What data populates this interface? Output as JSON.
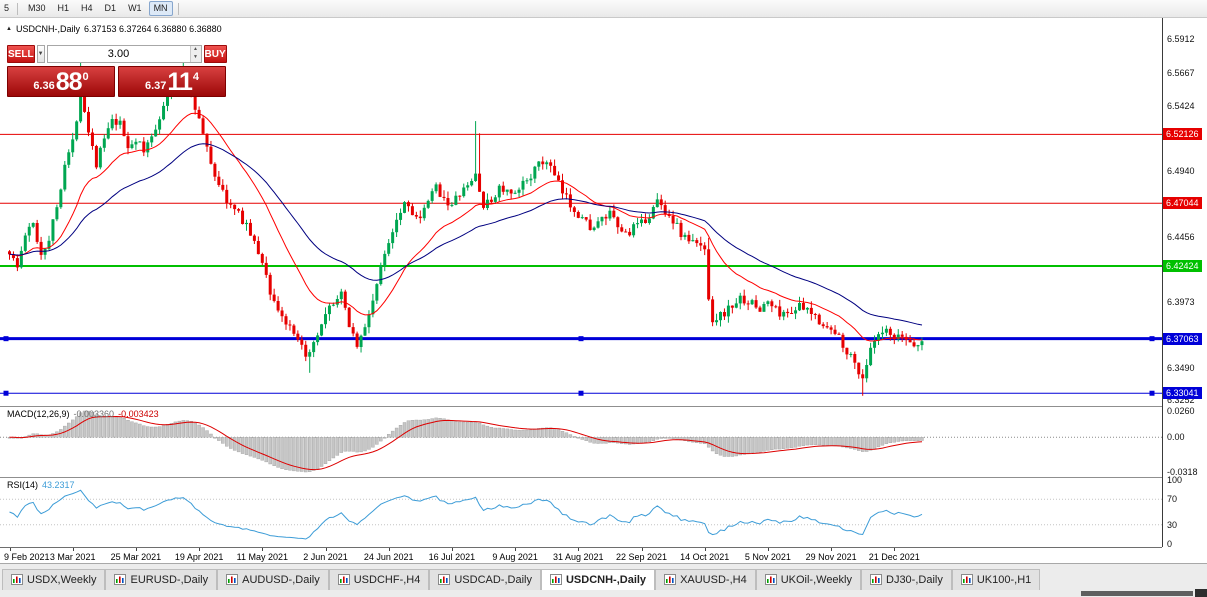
{
  "toolbar": {
    "partial_left_label": "5",
    "timeframes": [
      {
        "label": "M30",
        "active": false
      },
      {
        "label": "H1",
        "active": false
      },
      {
        "label": "H4",
        "active": false
      },
      {
        "label": "D1",
        "active": false
      },
      {
        "label": "W1",
        "active": false
      },
      {
        "label": "MN",
        "active": true
      }
    ]
  },
  "chart_header": {
    "symbol_title": "USDCNH-,Daily",
    "ohlc": "6.37153 6.37264 6.36880 6.36880"
  },
  "trade_panel": {
    "sell_label": "SELL",
    "buy_label": "BUY",
    "volume": "3.00",
    "sell_price": {
      "prefix": "6.36",
      "big": "88",
      "sup": "0"
    },
    "buy_price": {
      "prefix": "6.37",
      "big": "11",
      "sup": "4"
    }
  },
  "price_axis": {
    "labels": [
      {
        "text": "6.5912",
        "price": 6.5912
      },
      {
        "text": "6.5667",
        "price": 6.5667
      },
      {
        "text": "6.5424",
        "price": 6.5424
      },
      {
        "text": "6.4940",
        "price": 6.494
      },
      {
        "text": "6.4456",
        "price": 6.4456
      },
      {
        "text": "6.3973",
        "price": 6.3973
      },
      {
        "text": "6.3490",
        "price": 6.349
      },
      {
        "text": "6.3252",
        "price": 6.3252
      }
    ]
  },
  "levels": [
    {
      "label": "6.52126",
      "price": 6.52126,
      "color": "#e60000",
      "line_width": 1,
      "selected": false
    },
    {
      "label": "6.47044",
      "price": 6.47044,
      "color": "#e60000",
      "line_width": 1,
      "selected": false
    },
    {
      "label": "6.42424",
      "price": 6.42424,
      "color": "#00c000",
      "line_width": 2,
      "selected": false
    },
    {
      "label": "6.37063",
      "price": 6.37063,
      "color": "#0000d8",
      "line_width": 3,
      "selected": true
    },
    {
      "label": "6.33041",
      "price": 6.33041,
      "color": "#0000d8",
      "line_width": 1,
      "selected": true
    }
  ],
  "macd_panel": {
    "name": "MACD(12,26,9)",
    "value1": "-0.003360",
    "value2": "-0.003423",
    "axis_labels": {
      "top": "0.0260",
      "zero": "0.00",
      "bottom": "-0.0318"
    }
  },
  "rsi_panel": {
    "name": "RSI(14)",
    "value": "43.2317",
    "axis_labels": [
      {
        "text": "100",
        "value": 100
      },
      {
        "text": "70",
        "value": 70
      },
      {
        "text": "30",
        "value": 30
      },
      {
        "text": "0",
        "value": 0
      }
    ]
  },
  "time_axis": {
    "labels": [
      "9 Feb 2021",
      "3 Mar 2021",
      "25 Mar 2021",
      "19 Apr 2021",
      "11 May 2021",
      "2 Jun 2021",
      "24 Jun 2021",
      "16 Jul 2021",
      "9 Aug 2021",
      "31 Aug 2021",
      "22 Sep 2021",
      "14 Oct 2021",
      "5 Nov 2021",
      "29 Nov 2021",
      "21 Dec 2021"
    ]
  },
  "tabs": [
    {
      "label": "USDX,Weekly",
      "active": false
    },
    {
      "label": "EURUSD-,Daily",
      "active": false
    },
    {
      "label": "AUDUSD-,Daily",
      "active": false
    },
    {
      "label": "USDCHF-,H4",
      "active": false
    },
    {
      "label": "USDCAD-,Daily",
      "active": false
    },
    {
      "label": "USDCNH-,Daily",
      "active": true
    },
    {
      "label": "XAUUSD-,H4",
      "active": false
    },
    {
      "label": "UKOil-,Weekly",
      "active": false
    },
    {
      "label": "DJ30-,Daily",
      "active": false
    },
    {
      "label": "UK100-,H1",
      "active": false
    }
  ],
  "chart_data": {
    "type": "candlestick",
    "symbol": "USDCNH-",
    "timeframe": "Daily",
    "ohlc_current": {
      "open": 6.37153,
      "high": 6.37264,
      "low": 6.3688,
      "close": 6.3688
    },
    "price_range": {
      "top": 6.607,
      "bottom": 6.321
    },
    "num_candles": 232,
    "tick_interval_candles": 16,
    "close_anchors": [
      [
        0,
        6.435
      ],
      [
        2,
        6.423
      ],
      [
        4,
        6.447
      ],
      [
        6,
        6.455
      ],
      [
        8,
        6.433
      ],
      [
        10,
        6.445
      ],
      [
        12,
        6.468
      ],
      [
        14,
        6.5
      ],
      [
        16,
        6.515
      ],
      [
        18,
        6.553
      ],
      [
        20,
        6.525
      ],
      [
        22,
        6.5
      ],
      [
        24,
        6.518
      ],
      [
        26,
        6.53
      ],
      [
        28,
        6.528
      ],
      [
        30,
        6.512
      ],
      [
        32,
        6.518
      ],
      [
        34,
        6.508
      ],
      [
        36,
        6.52
      ],
      [
        38,
        6.535
      ],
      [
        40,
        6.548
      ],
      [
        42,
        6.558
      ],
      [
        44,
        6.563
      ],
      [
        46,
        6.552
      ],
      [
        48,
        6.532
      ],
      [
        50,
        6.51
      ],
      [
        52,
        6.492
      ],
      [
        54,
        6.478
      ],
      [
        56,
        6.468
      ],
      [
        58,
        6.462
      ],
      [
        60,
        6.455
      ],
      [
        62,
        6.44
      ],
      [
        64,
        6.428
      ],
      [
        66,
        6.405
      ],
      [
        68,
        6.392
      ],
      [
        70,
        6.382
      ],
      [
        72,
        6.372
      ],
      [
        74,
        6.363
      ],
      [
        76,
        6.358
      ],
      [
        78,
        6.372
      ],
      [
        80,
        6.386
      ],
      [
        82,
        6.398
      ],
      [
        84,
        6.402
      ],
      [
        86,
        6.382
      ],
      [
        88,
        6.366
      ],
      [
        90,
        6.378
      ],
      [
        92,
        6.4
      ],
      [
        94,
        6.422
      ],
      [
        96,
        6.443
      ],
      [
        98,
        6.46
      ],
      [
        100,
        6.472
      ],
      [
        102,
        6.465
      ],
      [
        104,
        6.457
      ],
      [
        106,
        6.472
      ],
      [
        108,
        6.482
      ],
      [
        110,
        6.475
      ],
      [
        112,
        6.468
      ],
      [
        114,
        6.478
      ],
      [
        116,
        6.482
      ],
      [
        118,
        6.492
      ],
      [
        120,
        6.468
      ],
      [
        122,
        6.472
      ],
      [
        124,
        6.482
      ],
      [
        126,
        6.478
      ],
      [
        128,
        6.475
      ],
      [
        130,
        6.485
      ],
      [
        132,
        6.492
      ],
      [
        134,
        6.498
      ],
      [
        136,
        6.502
      ],
      [
        138,
        6.49
      ],
      [
        140,
        6.478
      ],
      [
        142,
        6.47
      ],
      [
        144,
        6.463
      ],
      [
        146,
        6.456
      ],
      [
        148,
        6.452
      ],
      [
        150,
        6.458
      ],
      [
        152,
        6.462
      ],
      [
        154,
        6.452
      ],
      [
        156,
        6.448
      ],
      [
        158,
        6.452
      ],
      [
        160,
        6.455
      ],
      [
        162,
        6.462
      ],
      [
        164,
        6.472
      ],
      [
        166,
        6.465
      ],
      [
        168,
        6.458
      ],
      [
        170,
        6.448
      ],
      [
        172,
        6.443
      ],
      [
        174,
        6.44
      ],
      [
        176,
        6.437
      ],
      [
        177,
        6.402
      ],
      [
        178,
        6.385
      ],
      [
        180,
        6.388
      ],
      [
        182,
        6.392
      ],
      [
        184,
        6.398
      ],
      [
        186,
        6.4
      ],
      [
        188,
        6.396
      ],
      [
        190,
        6.392
      ],
      [
        192,
        6.398
      ],
      [
        194,
        6.392
      ],
      [
        196,
        6.388
      ],
      [
        198,
        6.392
      ],
      [
        200,
        6.394
      ],
      [
        202,
        6.39
      ],
      [
        204,
        6.387
      ],
      [
        206,
        6.382
      ],
      [
        208,
        6.376
      ],
      [
        210,
        6.372
      ],
      [
        212,
        6.362
      ],
      [
        214,
        6.352
      ],
      [
        216,
        6.342
      ],
      [
        217,
        6.352
      ],
      [
        218,
        6.362
      ],
      [
        220,
        6.372
      ],
      [
        222,
        6.375
      ],
      [
        224,
        6.369
      ],
      [
        226,
        6.372
      ],
      [
        228,
        6.368
      ],
      [
        230,
        6.366
      ],
      [
        231,
        6.3688
      ]
    ],
    "wick_events": [
      {
        "i": 18,
        "h": 6.576
      },
      {
        "i": 44,
        "h": 6.5755
      },
      {
        "i": 45,
        "h": 6.567
      },
      {
        "i": 118,
        "h": 6.531
      },
      {
        "i": 119,
        "h": 6.522
      },
      {
        "i": 177,
        "h": 6.445
      },
      {
        "i": 76,
        "l": 6.3455
      },
      {
        "i": 216,
        "l": 6.3285
      }
    ],
    "ma_fast_period": 20,
    "ma_slow_period": 45,
    "macd": {
      "fast": 12,
      "slow": 26,
      "signal": 9,
      "shown_values": [
        -0.00336,
        -0.003423
      ]
    },
    "rsi": {
      "period": 14,
      "current": 43.2317
    },
    "colors": {
      "up": "#00a651",
      "down": "#e60000",
      "ma_fast": "#ff0000",
      "ma_slow": "#000080",
      "macd_hist": "#c6c6c6",
      "macd_hist_border": "#9e9e9e",
      "macd_signal": "#dd0000",
      "rsi": "#3c9cd7",
      "level_red": "#e60000",
      "level_green": "#00c000",
      "level_blue": "#0000d8"
    }
  }
}
